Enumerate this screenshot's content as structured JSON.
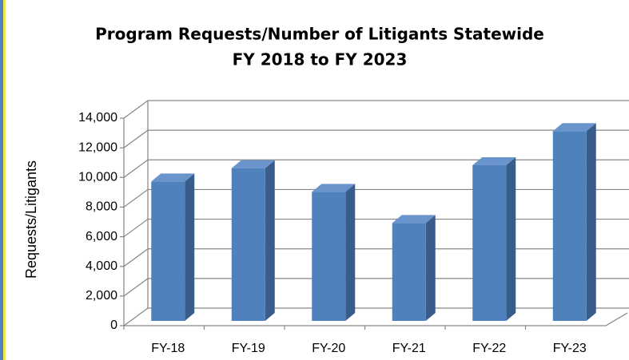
{
  "chart_data": {
    "type": "bar3d",
    "title": [
      "Program Requests/Number of Litigants Statewide",
      "FY 2018 to FY 2023"
    ],
    "y_label": "Requests/Litigants",
    "categories": [
      "FY-18",
      "FY-19",
      "FY-20",
      "FY-21",
      "FY-22",
      "FY-23"
    ],
    "values": [
      9400,
      10300,
      8700,
      6600,
      10500,
      12800
    ],
    "color": "#4f81bd",
    "ylim": [
      0,
      14000
    ],
    "yticks": [
      0,
      {
        "value": 2000,
        "label": "2,000"
      },
      {
        "value": 4000,
        "label": "4,000"
      },
      {
        "value": 6000,
        "label": "6,000"
      },
      {
        "value": 8000,
        "label": "8,000"
      },
      {
        "value": 10000,
        "label": "10,000"
      },
      {
        "value": 12000,
        "label": "12,000"
      },
      {
        "value": 14000,
        "label": "14,000"
      }
    ],
    "grid": true
  }
}
